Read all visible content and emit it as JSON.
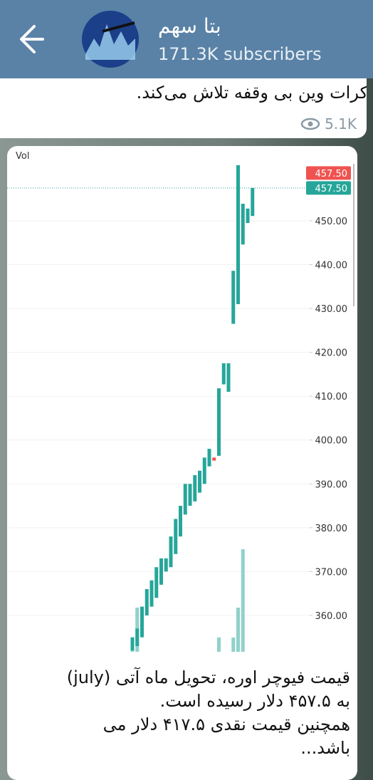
{
  "header": {
    "title": "بتا سهم",
    "subtitle": "171.3K subscribers"
  },
  "previous_message": {
    "text": "کرات وین بی وقفه تلاش می‌کند.",
    "views": "5.1K"
  },
  "chart_data": {
    "type": "candlestick",
    "label": "Vol",
    "open": [
      352,
      353,
      355,
      360,
      362,
      364,
      367,
      370,
      371,
      374,
      378,
      383,
      385,
      386,
      388,
      390,
      394,
      396,
      396.4,
      412.7,
      411,
      426.5,
      431,
      444.6,
      449.5,
      451.1
    ],
    "close": [
      355,
      357,
      362,
      366,
      368,
      371,
      373,
      373,
      378,
      382,
      385,
      390,
      390,
      392,
      393,
      396,
      398,
      395.3,
      411.8,
      417.5,
      417.5,
      438.6,
      462.7,
      453.9,
      452.8,
      457.5
    ],
    "volume": [
      8.5,
      31,
      null,
      null,
      null,
      null,
      null,
      null,
      null,
      null,
      null,
      null,
      null,
      null,
      null,
      null,
      null,
      null,
      10,
      null,
      null,
      10,
      31,
      72,
      null,
      null
    ],
    "up_color": "#26a69a",
    "down_color": "#ef5350",
    "volume_color": "#8fd2c9",
    "ylim": [
      351.7,
      463
    ],
    "vlim": [
      0,
      100
    ],
    "grid": true,
    "yticks": [
      {
        "value": 360,
        "label": "360.00"
      },
      {
        "value": 370,
        "label": "370.00"
      },
      {
        "value": 380,
        "label": "380.00"
      },
      {
        "value": 390,
        "label": "390.00"
      },
      {
        "value": 400,
        "label": "400.00"
      },
      {
        "value": 410,
        "label": "410.00"
      },
      {
        "value": 420,
        "label": "420.00"
      },
      {
        "value": 430,
        "label": "430.00"
      },
      {
        "value": 440,
        "label": "440.00"
      },
      {
        "value": 450,
        "label": "450.00"
      }
    ],
    "price_labels": [
      {
        "value": 457.5,
        "label": "457.50",
        "color": "#ef5350"
      },
      {
        "value": 457.5,
        "label": "457.50",
        "color": "#26a69a"
      }
    ]
  },
  "caption": {
    "lines": [
      "قیمت فیوچر اوره، تحویل ماه آتی (july)",
      "به ۴۵۷.۵ دلار رسیده است.",
      "همچنین قیمت نقدی ۴۱۷.۵ دلار می",
      "باشد..."
    ]
  }
}
